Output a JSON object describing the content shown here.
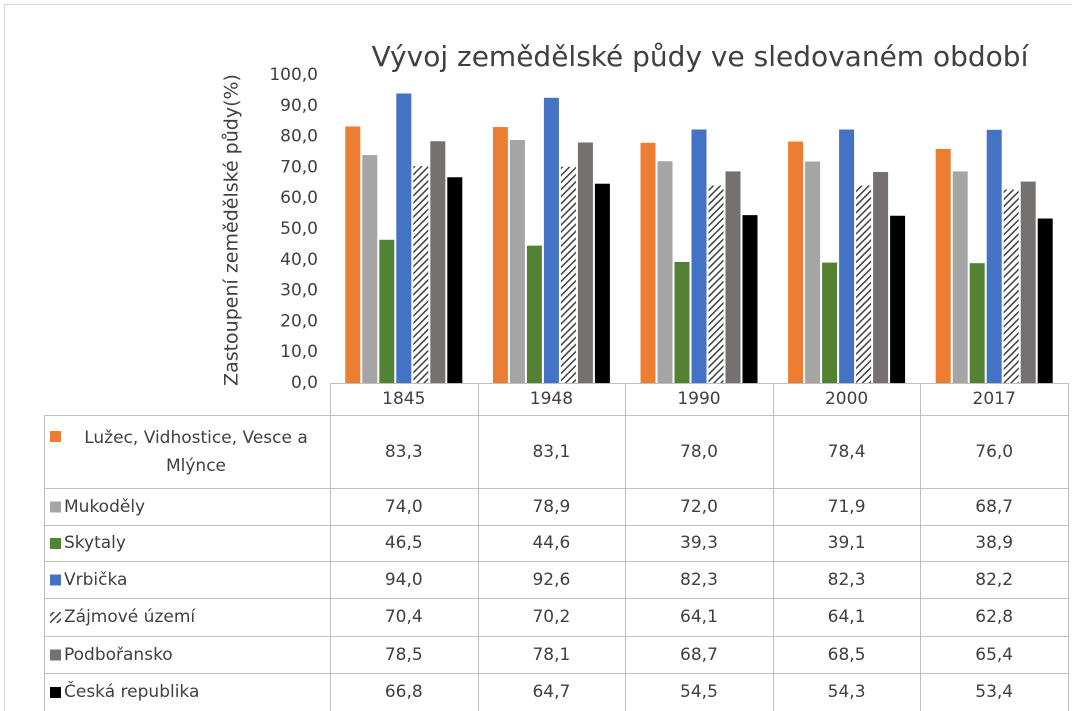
{
  "chart_data": {
    "type": "bar",
    "title": "Vývoj zemědělské půdy ve sledovaném období",
    "y_label": "Zastoupení zemědělské půdy(%)",
    "categories": [
      "1845",
      "1948",
      "1990",
      "2000",
      "2017"
    ],
    "ylim": [
      0,
      100
    ],
    "yticks": [
      {
        "value": 0,
        "label": "0,0"
      },
      {
        "value": 10,
        "label": "10,0"
      },
      {
        "value": 20,
        "label": "20,0"
      },
      {
        "value": 30,
        "label": "30,0"
      },
      {
        "value": 40,
        "label": "40,0"
      },
      {
        "value": 50,
        "label": "50,0"
      },
      {
        "value": 60,
        "label": "60,0"
      },
      {
        "value": 70,
        "label": "70,0"
      },
      {
        "value": 80,
        "label": "80,0"
      },
      {
        "value": 90,
        "label": "90,0"
      },
      {
        "value": 100,
        "label": "100,0"
      }
    ],
    "grid": false,
    "data_table": true,
    "series": [
      {
        "name": "Lužec, Vidhostice, Vesce a Mlýnce",
        "color": "#ed7d31",
        "values": [
          83.3,
          83.1,
          78.0,
          78.4,
          76.0
        ],
        "value_labels": [
          "83,3",
          "83,1",
          "78,0",
          "78,4",
          "76,0"
        ]
      },
      {
        "name": "Mukoděly",
        "color": "#a5a5a5",
        "values": [
          74.0,
          78.9,
          72.0,
          71.9,
          68.7
        ],
        "value_labels": [
          "74,0",
          "78,9",
          "72,0",
          "71,9",
          "68,7"
        ]
      },
      {
        "name": "Skytaly",
        "color": "#548235",
        "values": [
          46.5,
          44.6,
          39.3,
          39.1,
          38.9
        ],
        "value_labels": [
          "46,5",
          "44,6",
          "39,3",
          "39,1",
          "38,9"
        ]
      },
      {
        "name": "Vrbička",
        "color": "#4472c4",
        "values": [
          94.0,
          92.6,
          82.3,
          82.3,
          82.2
        ],
        "value_labels": [
          "94,0",
          "92,6",
          "82,3",
          "82,3",
          "82,2"
        ]
      },
      {
        "name": "Zájmové území",
        "color": "#404040",
        "pattern": "diagonal-hatch",
        "values": [
          70.4,
          70.2,
          64.1,
          64.1,
          62.8
        ],
        "value_labels": [
          "70,4",
          "70,2",
          "64,1",
          "64,1",
          "62,8"
        ]
      },
      {
        "name": "Podbořansko",
        "color": "#767171",
        "values": [
          78.5,
          78.1,
          68.7,
          68.5,
          65.4
        ],
        "value_labels": [
          "78,5",
          "78,1",
          "68,7",
          "68,5",
          "65,4"
        ]
      },
      {
        "name": "Česká republika",
        "color": "#000000",
        "values": [
          66.8,
          64.7,
          54.5,
          54.3,
          53.4
        ],
        "value_labels": [
          "66,8",
          "64,7",
          "54,5",
          "54,3",
          "53,4"
        ]
      }
    ]
  }
}
